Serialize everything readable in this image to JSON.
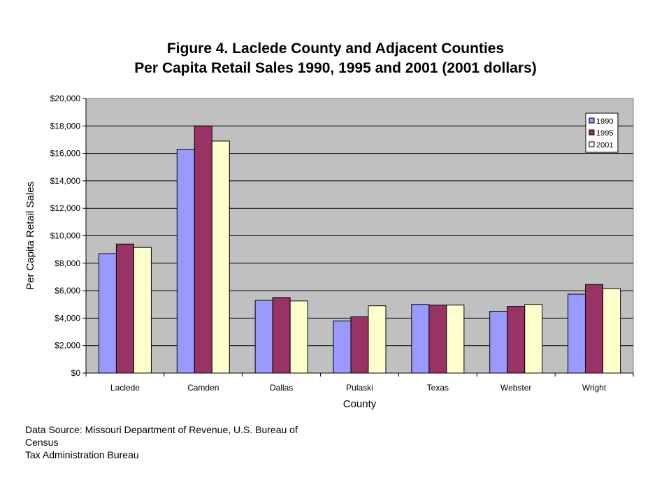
{
  "chart_data": {
    "type": "bar",
    "title": "Figure 4. Laclede County and Adjacent Counties",
    "subtitle": "Per Capita Retail Sales 1990, 1995 and 2001 (2001 dollars)",
    "xlabel": "County",
    "ylabel": "Per Capita Retail Sales",
    "ylim": [
      0,
      20000
    ],
    "yticks": [
      "$0",
      "$2,000",
      "$4,000",
      "$6,000",
      "$8,000",
      "$10,000",
      "$12,000",
      "$14,000",
      "$16,000",
      "$18,000",
      "$20,000"
    ],
    "categories": [
      "Laclede",
      "Camden",
      "Dallas",
      "Pulaski",
      "Texas",
      "Webster",
      "Wright"
    ],
    "series": [
      {
        "name": "1990",
        "color": "#9999ff",
        "values": [
          8700,
          16300,
          5300,
          3800,
          5000,
          4500,
          5750
        ]
      },
      {
        "name": "1995",
        "color": "#993366",
        "values": [
          9400,
          18000,
          5500,
          4100,
          4950,
          4850,
          6450
        ]
      },
      {
        "name": "2001",
        "color": "#ffffcc",
        "values": [
          9150,
          16900,
          5250,
          4900,
          4950,
          5000,
          6150
        ]
      }
    ],
    "grid": true,
    "legend_position": "top-right",
    "plot_background": "#c0c0c0"
  },
  "source_note": {
    "line1": "Data Source: Missouri Department of Revenue, U.S. Bureau of",
    "line2": "Census",
    "line3": "Tax Administration Bureau"
  }
}
